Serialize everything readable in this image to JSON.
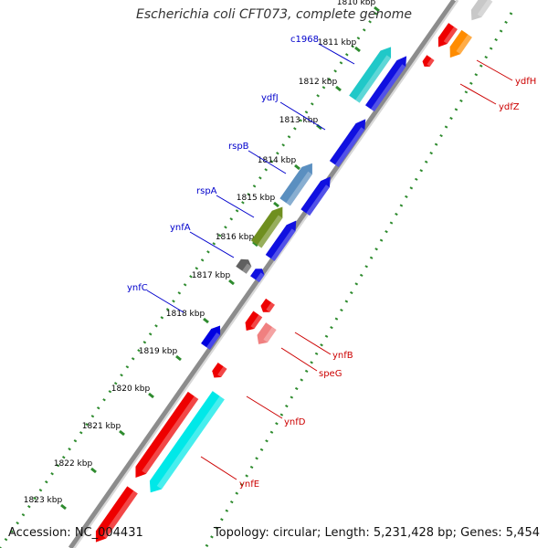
{
  "title": "Escherichia coli CFT073, complete genome",
  "accession_text": "Accession: NC_004431",
  "topology_text": "Topology: circular; Length: 5,231,428 bp; Genes: 5,454",
  "colors": {
    "backbone": "#8c8c8c",
    "tick": "#2e8b2e",
    "label_forward": "#0000cc",
    "label_reverse": "#cc0000",
    "forward_gene": "#0000e0",
    "reverse_gene": "#ee0000"
  },
  "ticks": [
    "1810 kbp",
    "1811 kbp",
    "1812 kbp",
    "1813 kbp",
    "1814 kbp",
    "1815 kbp",
    "1816 kbp",
    "1817 kbp",
    "1818 kbp",
    "1819 kbp",
    "1820 kbp",
    "1821 kbp",
    "1822 kbp",
    "1823 kbp"
  ],
  "genes": [
    {
      "name": "c1968",
      "strand": "forward",
      "color": "#20c8c8"
    },
    {
      "name": "ydfJ",
      "strand": "forward",
      "color": "#1010e0"
    },
    {
      "name": "rspB",
      "strand": "forward",
      "color": "#5a8fc0"
    },
    {
      "name": "rspA",
      "strand": "forward",
      "color": "#6f8f1f"
    },
    {
      "name": "ynfA",
      "strand": "forward",
      "color": "#606060"
    },
    {
      "name": "ynfC",
      "strand": "forward",
      "color": "#0000e0"
    },
    {
      "name": "ydfH",
      "strand": "reverse",
      "color": "#ff8c00"
    },
    {
      "name": "ydfZ",
      "strand": "reverse",
      "color": "#ee0000"
    },
    {
      "name": "ynfB",
      "strand": "reverse",
      "color": "#f08080"
    },
    {
      "name": "speG",
      "strand": "reverse",
      "color": "#ee0000"
    },
    {
      "name": "ynfD",
      "strand": "reverse",
      "color": "#ee0000"
    },
    {
      "name": "ynfE",
      "strand": "reverse",
      "color": "#00e8e8"
    }
  ]
}
